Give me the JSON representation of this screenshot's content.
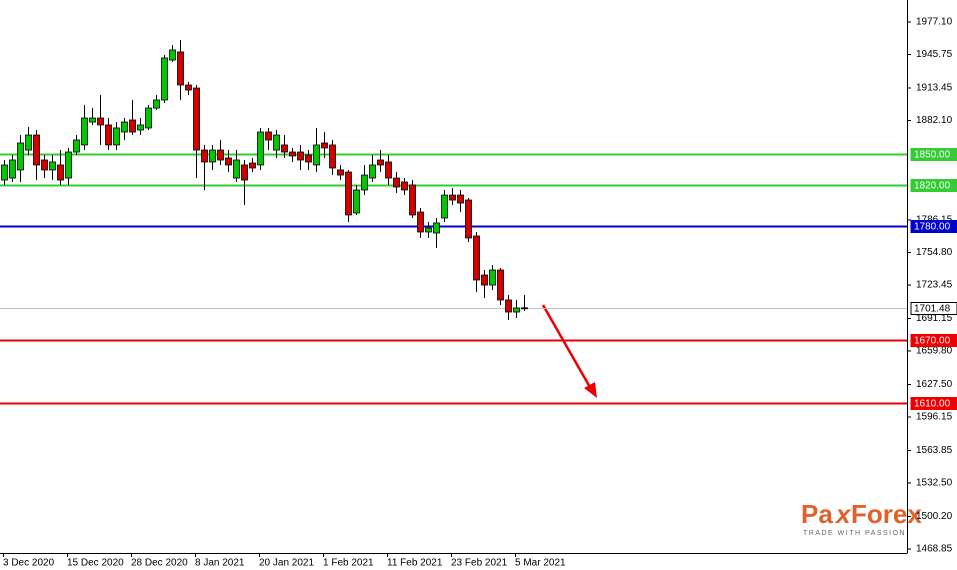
{
  "chart_data": {
    "type": "candlestick",
    "categories": [
      "3 Dec 2020",
      null,
      null,
      null,
      null,
      null,
      null,
      null,
      "15 Dec 2020",
      null,
      null,
      null,
      null,
      null,
      null,
      null,
      "28 Dec 2020",
      null,
      null,
      null,
      null,
      null,
      null,
      null,
      "8 Jan 2021",
      null,
      null,
      null,
      null,
      null,
      null,
      null,
      "20 Jan 2021",
      null,
      null,
      null,
      null,
      null,
      null,
      null,
      "1 Feb 2021",
      null,
      null,
      null,
      null,
      null,
      null,
      null,
      "11 Feb 2021",
      null,
      null,
      null,
      null,
      null,
      null,
      null,
      "23 Feb 2021",
      null,
      null,
      null,
      null,
      null,
      null,
      null,
      "5 Mar 2021",
      null
    ],
    "open": [
      1824.7,
      1826.6,
      1834.4,
      1853.6,
      1868.1,
      1844.0,
      1834.4,
      1839.2,
      1826.6,
      1851.7,
      1858.5,
      1880.6,
      1884.5,
      1877.8,
      1858.5,
      1871.0,
      1882.6,
      1872.9,
      1874.9,
      1894.1,
      1901.9,
      1940.4,
      1948.2,
      1916.3,
      1913.4,
      1853.6,
      1842.1,
      1853.6,
      1845.9,
      1826.6,
      1839.2,
      1841.1,
      1839.2,
      1871.0,
      1853.6,
      1858.5,
      1851.7,
      1851.7,
      1848.8,
      1839.2,
      1860.4,
      1858.5,
      1834.4,
      1832.4,
      1792.9,
      1815.1,
      1826.6,
      1844.0,
      1842.1,
      1826.6,
      1822.8,
      1819.9,
      1793.8,
      1774.6,
      1773.6,
      1788.1,
      1810.2,
      1810.2,
      1805.4,
      1770.7,
      1733.1,
      1723.4,
      1737.9,
      1709.0,
      1697.4,
      1701.5
    ],
    "high": [
      1844.0,
      1848.8,
      1868.1,
      1875.8,
      1872.9,
      1848.8,
      1848.8,
      1853.6,
      1855.6,
      1868.1,
      1897.0,
      1894.1,
      1906.7,
      1884.5,
      1880.6,
      1884.5,
      1901.9,
      1884.5,
      1897.0,
      1906.7,
      1945.3,
      1954.9,
      1959.7,
      1919.2,
      1916.3,
      1858.5,
      1858.5,
      1863.3,
      1853.6,
      1853.6,
      1844.0,
      1845.9,
      1874.9,
      1874.9,
      1872.9,
      1868.1,
      1855.6,
      1858.5,
      1853.6,
      1874.9,
      1871.0,
      1863.3,
      1839.2,
      1834.4,
      1819.9,
      1839.2,
      1848.8,
      1853.6,
      1848.8,
      1832.4,
      1826.6,
      1824.7,
      1797.7,
      1784.2,
      1788.1,
      1815.1,
      1817.0,
      1815.1,
      1807.4,
      1774.6,
      1737.9,
      1742.7,
      1739.8,
      1713.8,
      1709.0,
      1713.8
    ],
    "low": [
      1819.9,
      1822.8,
      1822.8,
      1848.8,
      1824.7,
      1826.6,
      1824.7,
      1819.9,
      1819.9,
      1848.8,
      1853.6,
      1877.8,
      1858.5,
      1853.6,
      1853.6,
      1863.3,
      1868.1,
      1868.1,
      1872.9,
      1892.2,
      1899.0,
      1938.5,
      1901.9,
      1906.7,
      1826.6,
      1815.1,
      1834.4,
      1839.2,
      1832.4,
      1822.8,
      1800.6,
      1832.4,
      1834.4,
      1853.6,
      1845.9,
      1845.9,
      1842.1,
      1834.4,
      1834.4,
      1832.4,
      1845.9,
      1829.5,
      1824.7,
      1784.2,
      1791.0,
      1810.2,
      1822.8,
      1832.4,
      1819.9,
      1812.2,
      1810.2,
      1788.1,
      1768.8,
      1768.8,
      1759.1,
      1784.2,
      1800.6,
      1793.8,
      1764.9,
      1716.7,
      1710.9,
      1718.6,
      1704.2,
      1689.7,
      1691.6,
      1698.4
    ],
    "close": [
      1839.2,
      1844.0,
      1860.4,
      1868.1,
      1839.2,
      1834.4,
      1842.1,
      1824.7,
      1851.7,
      1863.3,
      1884.5,
      1884.5,
      1877.8,
      1858.5,
      1874.9,
      1880.6,
      1871.0,
      1877.8,
      1894.1,
      1901.9,
      1942.4,
      1950.1,
      1916.3,
      1911.5,
      1853.6,
      1842.1,
      1853.6,
      1844.0,
      1839.2,
      1844.0,
      1824.7,
      1836.3,
      1871.0,
      1863.3,
      1868.1,
      1851.7,
      1847.9,
      1844.0,
      1842.1,
      1858.5,
      1855.6,
      1836.3,
      1829.5,
      1791.0,
      1815.1,
      1829.5,
      1839.2,
      1839.2,
      1826.6,
      1818.0,
      1815.1,
      1791.0,
      1774.6,
      1778.4,
      1783.3,
      1810.2,
      1805.4,
      1802.5,
      1768.8,
      1728.3,
      1723.4,
      1737.9,
      1709.0,
      1697.4,
      1701.3,
      1701.48
    ],
    "up_color": "#00c800",
    "down_color": "#d40000",
    "ylim": [
      1465.0,
      1998.3
    ],
    "yticks": [
      {
        "value": 1977.1,
        "label": "1977.10"
      },
      {
        "value": 1945.75,
        "label": "1945.75"
      },
      {
        "value": 1913.45,
        "label": "1913.45"
      },
      {
        "value": 1882.1,
        "label": "1882.10"
      },
      {
        "value": 1786.15,
        "label": "1786.15"
      },
      {
        "value": 1754.8,
        "label": "1754.80"
      },
      {
        "value": 1723.45,
        "label": "1723.45"
      },
      {
        "value": 1691.15,
        "label": "1691.15"
      },
      {
        "value": 1659.8,
        "label": "1659.80"
      },
      {
        "value": 1627.5,
        "label": "1627.50"
      },
      {
        "value": 1596.15,
        "label": "1596.15"
      },
      {
        "value": 1563.85,
        "label": "1563.85"
      },
      {
        "value": 1532.5,
        "label": "1532.50"
      },
      {
        "value": 1500.2,
        "label": "1500.20"
      },
      {
        "value": 1468.85,
        "label": "1468.85"
      }
    ],
    "levels": [
      {
        "value": 1850,
        "label": "1850.00",
        "color": "#33cc33"
      },
      {
        "value": 1820,
        "label": "1820.00",
        "color": "#33cc33"
      },
      {
        "value": 1780,
        "label": "1780.00",
        "color": "#0000cc"
      },
      {
        "value": 1701.48,
        "label": "1701.48",
        "color": "#c0c0c0"
      },
      {
        "value": 1670,
        "label": "1670.00",
        "color": "#ee0000"
      },
      {
        "value": 1610,
        "label": "1610.00",
        "color": "#ee0000"
      }
    ],
    "brand_parts": [
      "Pa",
      "x",
      "Forex"
    ],
    "tagline": "TRADE WITH PASSION"
  }
}
